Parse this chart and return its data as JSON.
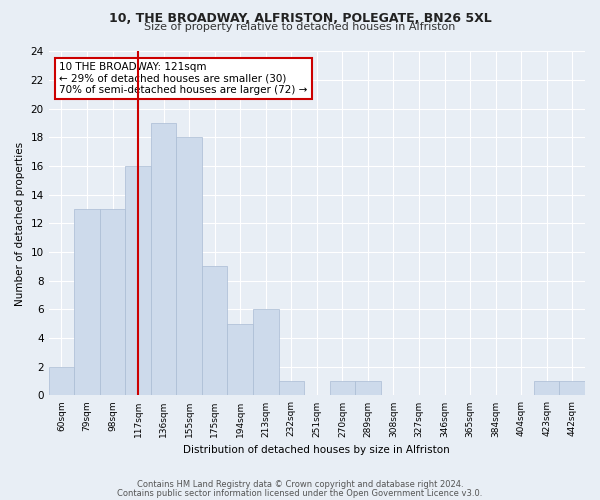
{
  "title1": "10, THE BROADWAY, ALFRISTON, POLEGATE, BN26 5XL",
  "title2": "Size of property relative to detached houses in Alfriston",
  "xlabel": "Distribution of detached houses by size in Alfriston",
  "ylabel": "Number of detached properties",
  "bar_labels": [
    "60sqm",
    "79sqm",
    "98sqm",
    "117sqm",
    "136sqm",
    "155sqm",
    "175sqm",
    "194sqm",
    "213sqm",
    "232sqm",
    "251sqm",
    "270sqm",
    "289sqm",
    "308sqm",
    "327sqm",
    "346sqm",
    "365sqm",
    "384sqm",
    "404sqm",
    "423sqm",
    "442sqm"
  ],
  "bar_values": [
    2,
    13,
    13,
    16,
    19,
    18,
    9,
    5,
    6,
    1,
    0,
    1,
    1,
    0,
    0,
    0,
    0,
    0,
    0,
    1,
    1
  ],
  "bar_color": "#cddaeb",
  "bar_edgecolor": "#aabcd4",
  "annotation_text": "10 THE BROADWAY: 121sqm\n← 29% of detached houses are smaller (30)\n70% of semi-detached houses are larger (72) →",
  "annotation_box_color": "#ffffff",
  "annotation_box_edgecolor": "#cc0000",
  "vline_color": "#cc0000",
  "ylim": [
    0,
    24
  ],
  "yticks": [
    0,
    2,
    4,
    6,
    8,
    10,
    12,
    14,
    16,
    18,
    20,
    22,
    24
  ],
  "footer1": "Contains HM Land Registry data © Crown copyright and database right 2024.",
  "footer2": "Contains public sector information licensed under the Open Government Licence v3.0.",
  "background_color": "#e8eef5",
  "grid_color": "#ffffff"
}
